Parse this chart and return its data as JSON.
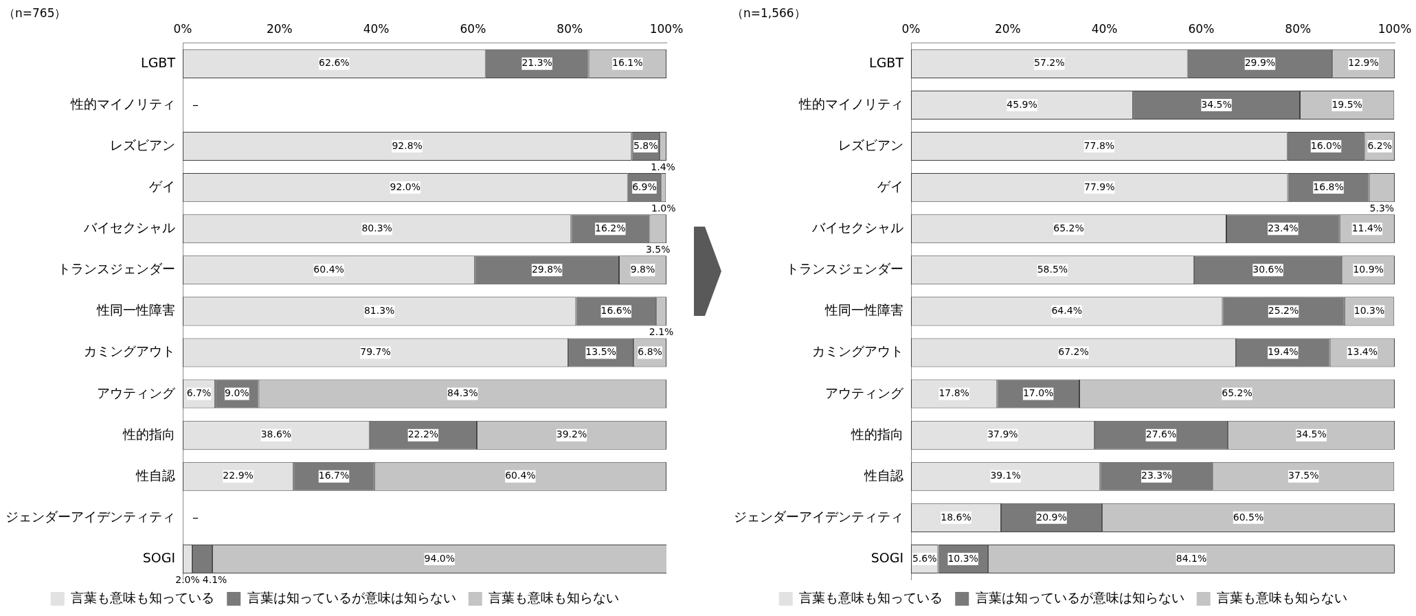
{
  "chart_data": [
    {
      "type": "bar",
      "orientation": "horizontal",
      "stacked": true,
      "title": "（n=765）",
      "legend": "bottom",
      "categories": [
        "LGBT",
        "性的マイノリティ",
        "レズビアン",
        "ゲイ",
        "バイセクシャル",
        "トランスジェンダー",
        "性同一性障害",
        "カミングアウト",
        "アウティング",
        "性的指向",
        "性自認",
        "ジェンダーアイデンティティ",
        "SOGI"
      ],
      "xlim": [
        0,
        100
      ],
      "xticks": [
        {
          "value": 0,
          "label": "0%"
        },
        {
          "value": 20,
          "label": "20%"
        },
        {
          "value": 40,
          "label": "40%"
        },
        {
          "value": 60,
          "label": "60%"
        },
        {
          "value": 80,
          "label": "80%"
        },
        {
          "value": 100,
          "label": "100%"
        }
      ],
      "series": [
        {
          "name": "言葉も意味も知っている",
          "color": "#e2e2e2",
          "values": [
            62.6,
            null,
            92.8,
            92.0,
            80.3,
            60.4,
            81.3,
            79.7,
            6.7,
            38.6,
            22.9,
            null,
            2.0
          ],
          "value_labels": [
            "62.6%",
            null,
            "92.8%",
            "92.0%",
            "80.3%",
            "60.4%",
            "81.3%",
            "79.7%",
            "6.7%",
            "38.6%",
            "22.9%",
            null,
            "2.0%"
          ]
        },
        {
          "name": "言葉は知っているが意味は知らない",
          "color": "#7a7a7a",
          "values": [
            21.3,
            null,
            5.8,
            6.9,
            16.2,
            29.8,
            16.6,
            13.5,
            9.0,
            22.2,
            16.7,
            null,
            4.1
          ],
          "value_labels": [
            "21.3%",
            null,
            "5.8%",
            "6.9%",
            "16.2%",
            "29.8%",
            "16.6%",
            "13.5%",
            "9.0%",
            "22.2%",
            "16.7%",
            null,
            "4.1%"
          ]
        },
        {
          "name": "言葉も意味も知らない",
          "color": "#c4c4c4",
          "values": [
            16.1,
            null,
            1.4,
            1.0,
            3.5,
            9.8,
            2.1,
            6.8,
            84.3,
            39.2,
            60.4,
            null,
            94.0
          ],
          "value_labels": [
            "16.1%",
            null,
            "1.4%",
            "1.0%",
            "3.5%",
            "9.8%",
            "2.1%",
            "6.8%",
            "84.3%",
            "39.2%",
            "60.4%",
            null,
            "94.0%"
          ]
        }
      ],
      "annotations": [
        "–",
        "–"
      ]
    },
    {
      "type": "bar",
      "orientation": "horizontal",
      "stacked": true,
      "title": "（n=1,566）",
      "legend": "bottom",
      "categories": [
        "LGBT",
        "性的マイノリティ",
        "レズビアン",
        "ゲイ",
        "バイセクシャル",
        "トランスジェンダー",
        "性同一性障害",
        "カミングアウト",
        "アウティング",
        "性的指向",
        "性自認",
        "ジェンダーアイデンティティ",
        "SOGI"
      ],
      "xlim": [
        0,
        100
      ],
      "xticks": [
        {
          "value": 0,
          "label": "0%"
        },
        {
          "value": 20,
          "label": "20%"
        },
        {
          "value": 40,
          "label": "40%"
        },
        {
          "value": 60,
          "label": "60%"
        },
        {
          "value": 80,
          "label": "80%"
        },
        {
          "value": 100,
          "label": "100%"
        }
      ],
      "series": [
        {
          "name": "言葉も意味も知っている",
          "color": "#e2e2e2",
          "values": [
            57.2,
            45.9,
            77.8,
            77.9,
            65.2,
            58.5,
            64.4,
            67.2,
            17.8,
            37.9,
            39.1,
            18.6,
            5.6
          ],
          "value_labels": [
            "57.2%",
            "45.9%",
            "77.8%",
            "77.9%",
            "65.2%",
            "58.5%",
            "64.4%",
            "67.2%",
            "17.8%",
            "37.9%",
            "39.1%",
            "18.6%",
            "5.6%"
          ]
        },
        {
          "name": "言葉は知っているが意味は知らない",
          "color": "#7a7a7a",
          "values": [
            29.9,
            34.5,
            16.0,
            16.8,
            23.4,
            30.6,
            25.2,
            19.4,
            17.0,
            27.6,
            23.3,
            20.9,
            10.3
          ],
          "value_labels": [
            "29.9%",
            "34.5%",
            "16.0%",
            "16.8%",
            "23.4%",
            "30.6%",
            "25.2%",
            "19.4%",
            "17.0%",
            "27.6%",
            "23.3%",
            "20.9%",
            "10.3%"
          ]
        },
        {
          "name": "言葉も意味も知らない",
          "color": "#c4c4c4",
          "values": [
            12.9,
            19.5,
            6.2,
            5.3,
            11.4,
            10.9,
            10.3,
            13.4,
            65.2,
            34.5,
            37.5,
            60.5,
            84.1
          ],
          "value_labels": [
            "12.9%",
            "19.5%",
            "6.2%",
            "5.3%",
            "11.4%",
            "10.9%",
            "10.3%",
            "13.4%",
            "65.2%",
            "34.5%",
            "37.5%",
            "60.5%",
            "84.1%"
          ]
        }
      ]
    }
  ]
}
